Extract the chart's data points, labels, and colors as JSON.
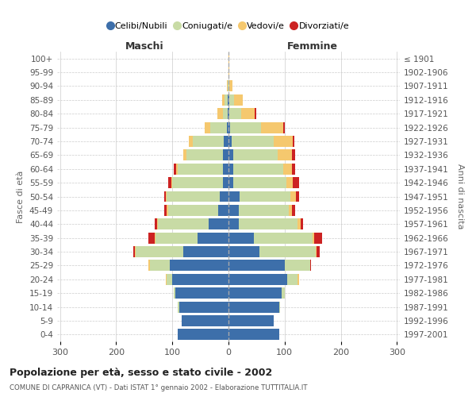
{
  "age_groups": [
    "0-4",
    "5-9",
    "10-14",
    "15-19",
    "20-24",
    "25-29",
    "30-34",
    "35-39",
    "40-44",
    "45-49",
    "50-54",
    "55-59",
    "60-64",
    "65-69",
    "70-74",
    "75-79",
    "80-84",
    "85-89",
    "90-94",
    "95-99",
    "100+"
  ],
  "birth_years": [
    "1997-2001",
    "1992-1996",
    "1987-1991",
    "1982-1986",
    "1977-1981",
    "1972-1976",
    "1967-1971",
    "1962-1966",
    "1957-1961",
    "1952-1956",
    "1947-1951",
    "1942-1946",
    "1937-1941",
    "1932-1936",
    "1927-1931",
    "1922-1926",
    "1917-1921",
    "1912-1916",
    "1907-1911",
    "1902-1906",
    "≤ 1901"
  ],
  "maschi_celibi": [
    90,
    83,
    88,
    95,
    100,
    105,
    80,
    55,
    35,
    18,
    15,
    10,
    10,
    10,
    8,
    3,
    2,
    2,
    0,
    0,
    0
  ],
  "maschi_coniugati": [
    0,
    0,
    2,
    3,
    10,
    35,
    85,
    75,
    90,
    90,
    95,
    90,
    80,
    65,
    55,
    30,
    8,
    5,
    2,
    0,
    0
  ],
  "maschi_vedovi": [
    0,
    0,
    0,
    0,
    2,
    2,
    2,
    2,
    2,
    2,
    2,
    2,
    3,
    5,
    8,
    10,
    10,
    5,
    1,
    0,
    0
  ],
  "maschi_divorziati": [
    0,
    0,
    0,
    0,
    0,
    0,
    2,
    10,
    5,
    5,
    2,
    5,
    5,
    0,
    0,
    0,
    0,
    0,
    0,
    0,
    0
  ],
  "femmine_celibi": [
    90,
    80,
    90,
    95,
    105,
    100,
    55,
    45,
    18,
    18,
    20,
    8,
    8,
    8,
    5,
    3,
    2,
    2,
    0,
    0,
    0
  ],
  "femmine_coniugati": [
    0,
    0,
    2,
    5,
    18,
    45,
    100,
    105,
    105,
    90,
    90,
    95,
    90,
    80,
    75,
    55,
    20,
    8,
    2,
    0,
    0
  ],
  "femmine_vedovi": [
    0,
    0,
    0,
    0,
    2,
    0,
    2,
    2,
    5,
    5,
    10,
    12,
    15,
    25,
    35,
    40,
    25,
    15,
    5,
    2,
    1
  ],
  "femmine_divorziati": [
    0,
    0,
    0,
    0,
    0,
    2,
    5,
    15,
    5,
    5,
    5,
    10,
    5,
    5,
    2,
    2,
    2,
    0,
    0,
    0,
    0
  ],
  "colors": {
    "celibi": "#3d6faa",
    "coniugati": "#c8dba5",
    "vedovi": "#f5c86e",
    "divorziati": "#cc2222"
  },
  "title": "Popolazione per età, sesso e stato civile - 2002",
  "subtitle": "COMUNE DI CAPRANICA (VT) - Dati ISTAT 1° gennaio 2002 - Elaborazione TUTTITALIA.IT",
  "xlabel_maschi": "Maschi",
  "xlabel_femmine": "Femmine",
  "ylabel_left": "Fasce di età",
  "ylabel_right": "Anni di nascita",
  "xlim": 305,
  "background_color": "#ffffff",
  "grid_color": "#cccccc"
}
